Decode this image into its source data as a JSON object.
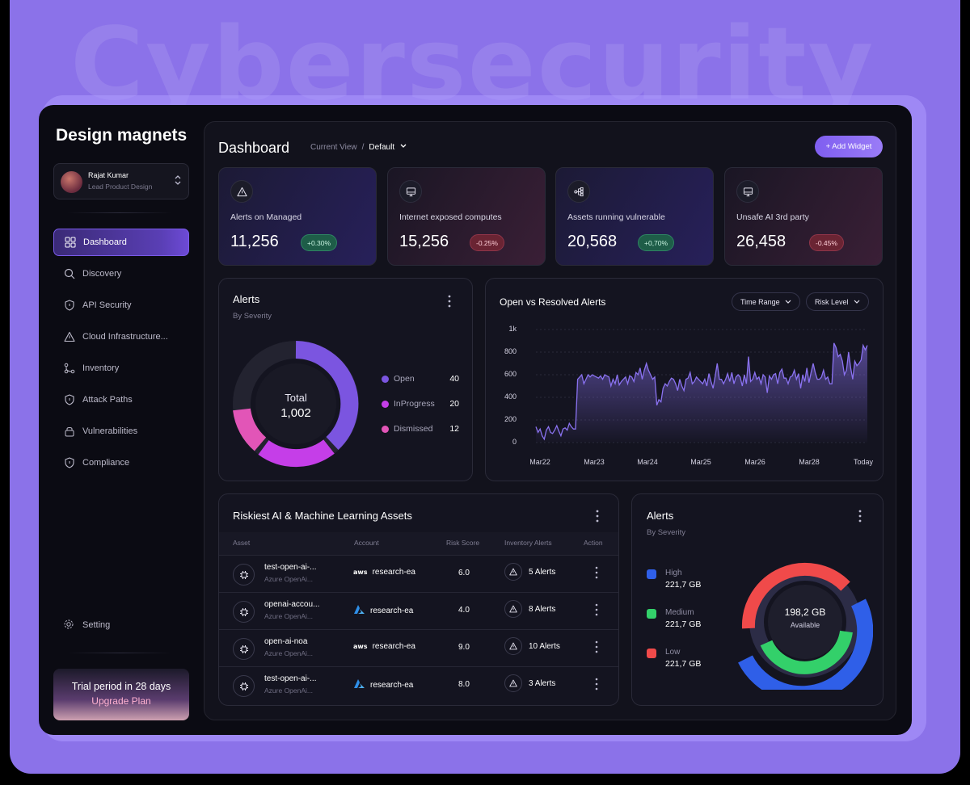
{
  "watermark": "Cybersecurity",
  "sidebar": {
    "brand": "Design magnets",
    "user": {
      "name": "Rajat Kumar",
      "role": "Lead Product Design"
    },
    "items": [
      {
        "label": "Dashboard",
        "icon": "grid-icon",
        "active": true
      },
      {
        "label": "Discovery",
        "icon": "search-icon"
      },
      {
        "label": "API Security",
        "icon": "shield-icon"
      },
      {
        "label": "Cloud Infrastructure...",
        "icon": "warning-icon"
      },
      {
        "label": "Inventory",
        "icon": "git-branch-icon"
      },
      {
        "label": "Attack Paths",
        "icon": "shield-icon"
      },
      {
        "label": "Vulnerabilities",
        "icon": "lock-icon"
      },
      {
        "label": "Compliance",
        "icon": "shield-icon"
      }
    ],
    "setting_label": "Setting",
    "trial": {
      "text": "Trial period in 28 days",
      "cta": "Upgrade Plan"
    }
  },
  "header": {
    "title": "Dashboard",
    "crumb_label": "Current View",
    "crumb_sep": "/",
    "crumb_value": "Default",
    "add_widget": "+ Add Widget"
  },
  "stats": [
    {
      "label": "Alerts on Managed",
      "value": "11,256",
      "change": "+0.30%",
      "trend": "up",
      "icon": "warning-icon"
    },
    {
      "label": "Internet exposed computes",
      "value": "15,256",
      "change": "-0.25%",
      "trend": "down",
      "icon": "monitor-icon"
    },
    {
      "label": "Assets running vulnerable",
      "value": "20,568",
      "change": "+0,70%",
      "trend": "up",
      "icon": "network-icon"
    },
    {
      "label": "Unsafe AI 3rd party",
      "value": "26,458",
      "change": "-0.45%",
      "trend": "down",
      "icon": "monitor-icon"
    }
  ],
  "alerts_card": {
    "title": "Alerts",
    "subtitle": "By Severity",
    "center_label": "Total",
    "center_value": "1,002",
    "legend": [
      {
        "label": "Open",
        "value": "40",
        "color": "#7b55e0"
      },
      {
        "label": "InProgress",
        "value": "20",
        "color": "#c53ee8"
      },
      {
        "label": "Dismissed",
        "value": "12",
        "color": "#e255b7"
      }
    ]
  },
  "trend_card": {
    "title": "Open vs Resolved Alerts",
    "filters": [
      "Time Range",
      "Risk Level"
    ]
  },
  "chart_data": {
    "type": "area",
    "title": "Open vs Resolved Alerts",
    "x_ticks": [
      "Mar22",
      "Mar23",
      "Mar24",
      "Mar25",
      "Mar26",
      "Mar28",
      "Today"
    ],
    "y_ticks": [
      "1k",
      "800",
      "600",
      "400",
      "200",
      "0"
    ],
    "ylim": [
      0,
      1000
    ],
    "line_color": "#8a72f0",
    "values": [
      140,
      90,
      120,
      60,
      30,
      110,
      140,
      90,
      80,
      110,
      150,
      100,
      60,
      120,
      130,
      110,
      170,
      140,
      120,
      120,
      560,
      580,
      600,
      520,
      560,
      600,
      580,
      600,
      590,
      580,
      570,
      590,
      560,
      600,
      590,
      580,
      500,
      560,
      520,
      600,
      510,
      540,
      560,
      580,
      520,
      590,
      580,
      540,
      620,
      600,
      660,
      560,
      640,
      700,
      640,
      600,
      560,
      580,
      330,
      380,
      360,
      480,
      520,
      500,
      540,
      570,
      560,
      520,
      460,
      560,
      500,
      460,
      560,
      570,
      620,
      520,
      540,
      580,
      560,
      540,
      520,
      560,
      500,
      610,
      540,
      480,
      590,
      700,
      560,
      560,
      520,
      560,
      610,
      540,
      620,
      520,
      580,
      600,
      580,
      500,
      600,
      520,
      760,
      540,
      560,
      620,
      560,
      580,
      520,
      600,
      580,
      440,
      590,
      560,
      600,
      610,
      520,
      620,
      650,
      570,
      570,
      520,
      580,
      590,
      640,
      560,
      610,
      480,
      600,
      540,
      660,
      530,
      620,
      700,
      620,
      560,
      560,
      580,
      640,
      560,
      580,
      520,
      520,
      880,
      840,
      760,
      780,
      720,
      600,
      640,
      800,
      660,
      560,
      720,
      680,
      700,
      730,
      860,
      820,
      860
    ]
  },
  "table": {
    "title": "Riskiest AI & Machine Learning Assets",
    "columns": [
      "Asset",
      "Account",
      "Risk Score",
      "Inventory Alerts",
      "Action"
    ],
    "rows": [
      {
        "asset": "test-open-ai-...",
        "sub": "Azure OpenAi...",
        "provider": "aws",
        "account": "research-ea",
        "score": "6.0",
        "alerts": "5 Alerts"
      },
      {
        "asset": "openai-accou...",
        "sub": "Azure OpenAi...",
        "provider": "azure",
        "account": "research-ea",
        "score": "4.0",
        "alerts": "8 Alerts"
      },
      {
        "asset": "open-ai-noa",
        "sub": "Azure OpenAi...",
        "provider": "aws",
        "account": "research-ea",
        "score": "9.0",
        "alerts": "10 Alerts"
      },
      {
        "asset": "test-open-ai-...",
        "sub": "Azure OpenAi...",
        "provider": "azure",
        "account": "research-ea",
        "score": "8.0",
        "alerts": "3 Alerts"
      }
    ],
    "aws_logo": "aws"
  },
  "storage_card": {
    "title": "Alerts",
    "subtitle": "By Severity",
    "center_value": "198,2 GB",
    "center_label": "Available",
    "levels": [
      {
        "label": "High",
        "value": "221,7 GB",
        "color": "#2f5fe8"
      },
      {
        "label": "Medium",
        "value": "221,7 GB",
        "color": "#33d06a"
      },
      {
        "label": "Low",
        "value": "221,7 GB",
        "color": "#f04a4a"
      }
    ]
  }
}
